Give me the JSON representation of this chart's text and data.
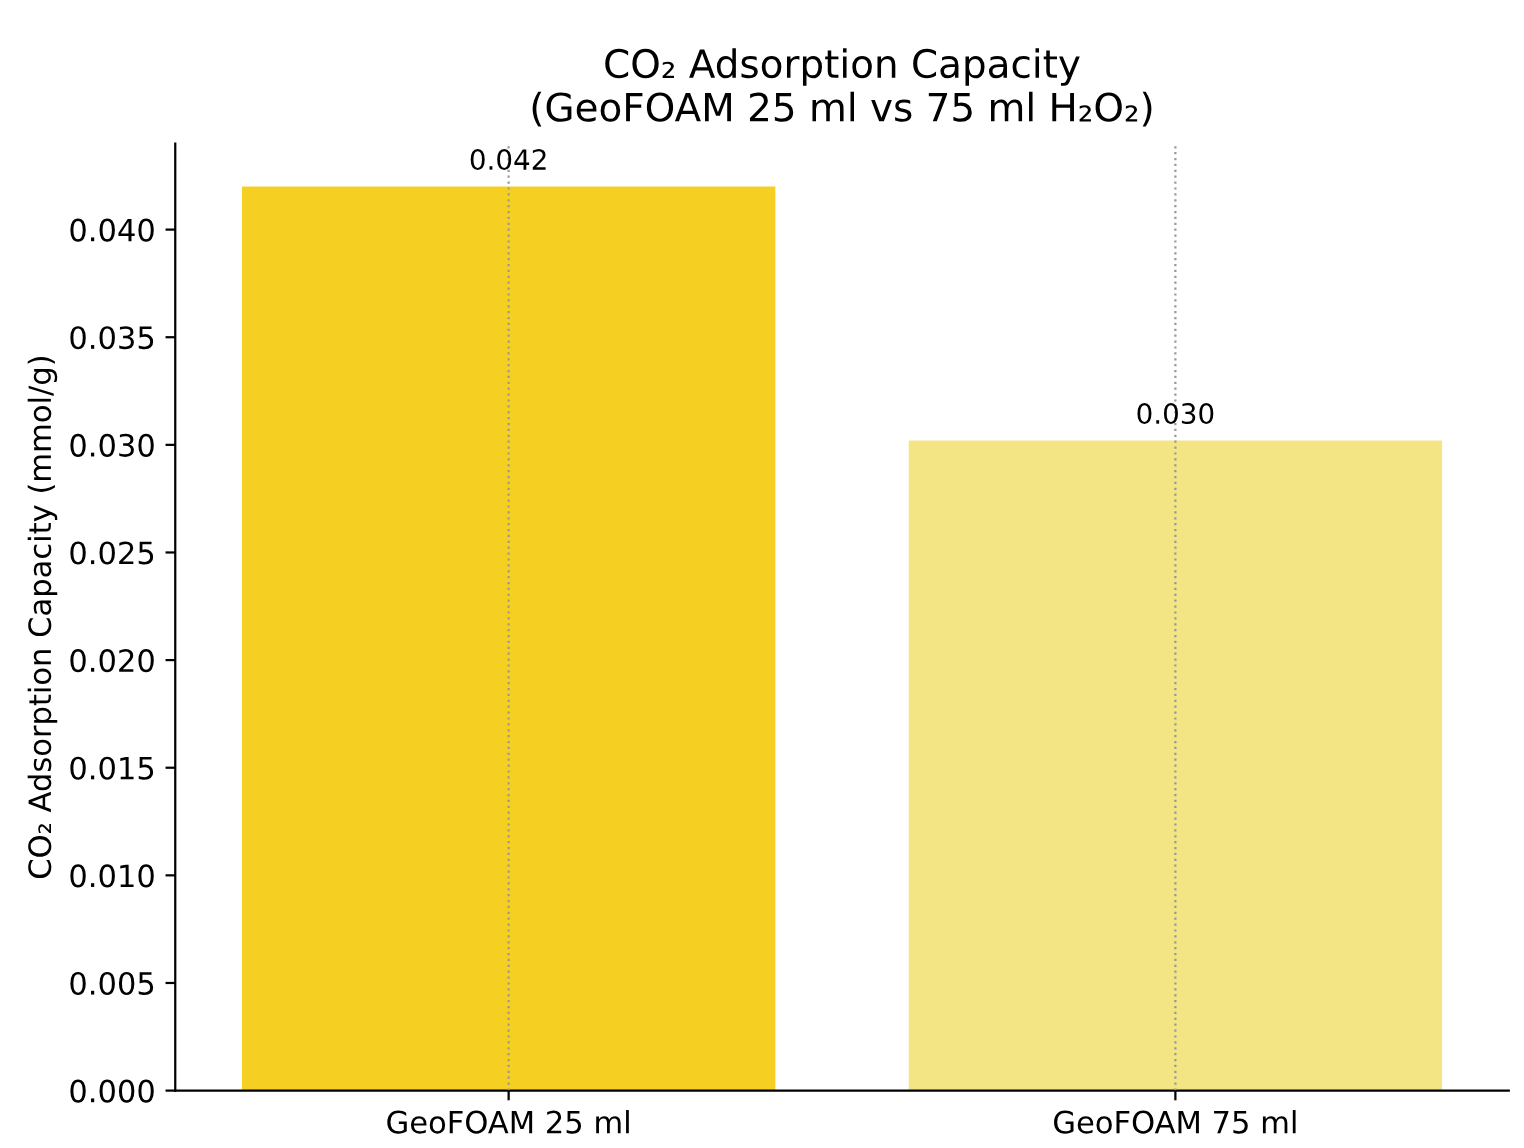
{
  "chart_data": {
    "type": "bar",
    "title": "CO₂ Adsorption Capacity\n(GeoFOAM 25 ml vs 75 ml H₂O₂)",
    "ylabel": "CO₂ Adsorption Capacity (mmol/g)",
    "categories": [
      "GeoFOAM 25 ml",
      "GeoFOAM 75 ml"
    ],
    "values": [
      0.042,
      0.0302
    ],
    "colors": [
      "#f5cf22",
      "#f4e584"
    ],
    "value_labels": [
      "0.042",
      "0.030"
    ],
    "ylim": [
      0,
      0.044
    ],
    "yticks": [
      {
        "value": 0,
        "label": "0.000"
      },
      {
        "value": 0.005,
        "label": "0.005"
      },
      {
        "value": 0.01,
        "label": "0.010"
      },
      {
        "value": 0.015,
        "label": "0.015"
      },
      {
        "value": 0.02,
        "label": "0.020"
      },
      {
        "value": 0.025,
        "label": "0.025"
      },
      {
        "value": 0.03,
        "label": "0.030"
      },
      {
        "value": 0.035,
        "label": "0.035"
      },
      {
        "value": 0.04,
        "label": "0.040"
      }
    ],
    "grid": "x"
  }
}
